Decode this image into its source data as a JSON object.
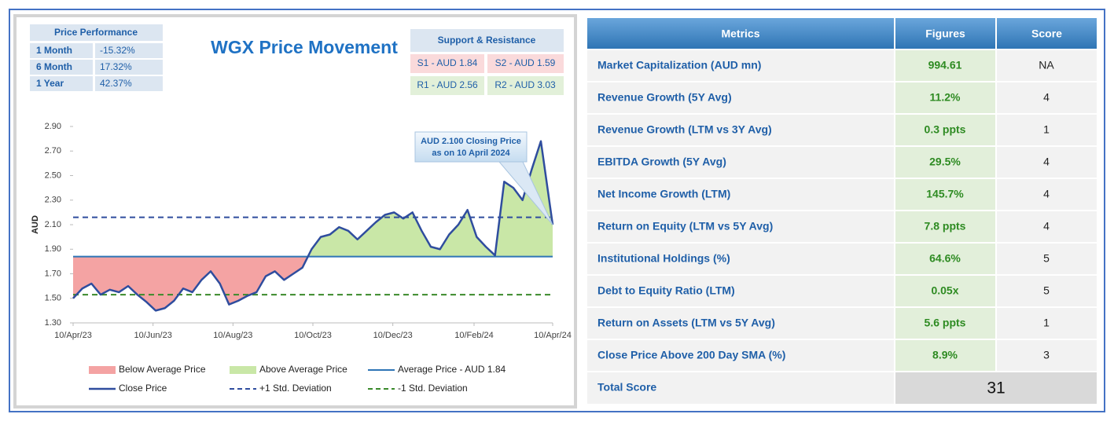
{
  "price_performance": {
    "title": "Price Performance",
    "rows": [
      [
        "1 Month",
        "-15.32%"
      ],
      [
        "6 Month",
        "17.32%"
      ],
      [
        "1 Year",
        "42.37%"
      ]
    ]
  },
  "support_resistance": {
    "title": "Support & Resistance",
    "levels": [
      "S1 - AUD 1.84",
      "S2 - AUD 1.59",
      "R1 - AUD 2.56",
      "R2 - AUD 3.03"
    ]
  },
  "chart_data": {
    "type": "line",
    "title": "WGX Price Movement",
    "y_label": "AUD",
    "x": [
      "10/Apr/23",
      "17/Apr/23",
      "24/Apr/23",
      "01/May/23",
      "08/May/23",
      "15/May/23",
      "22/May/23",
      "29/May/23",
      "05/Jun/23",
      "12/Jun/23",
      "19/Jun/23",
      "26/Jun/23",
      "03/Jul/23",
      "10/Jul/23",
      "17/Jul/23",
      "24/Jul/23",
      "31/Jul/23",
      "07/Aug/23",
      "14/Aug/23",
      "21/Aug/23",
      "28/Aug/23",
      "04/Sep/23",
      "11/Sep/23",
      "18/Sep/23",
      "25/Sep/23",
      "02/Oct/23",
      "09/Oct/23",
      "16/Oct/23",
      "23/Oct/23",
      "30/Oct/23",
      "06/Nov/23",
      "13/Nov/23",
      "20/Nov/23",
      "27/Nov/23",
      "04/Dec/23",
      "11/Dec/23",
      "18/Dec/23",
      "25/Dec/23",
      "01/Jan/24",
      "08/Jan/24",
      "15/Jan/24",
      "22/Jan/24",
      "29/Jan/24",
      "05/Feb/24",
      "12/Feb/24",
      "19/Feb/24",
      "26/Feb/24",
      "04/Mar/24",
      "11/Mar/24",
      "18/Mar/24",
      "25/Mar/24",
      "01/Apr/24",
      "08/Apr/24",
      "10/Apr/24"
    ],
    "series": [
      {
        "name": "Close Price",
        "color": "#2f4d9e",
        "values": [
          1.5,
          1.58,
          1.62,
          1.53,
          1.57,
          1.55,
          1.6,
          1.53,
          1.47,
          1.4,
          1.42,
          1.48,
          1.58,
          1.55,
          1.65,
          1.72,
          1.62,
          1.45,
          1.48,
          1.52,
          1.55,
          1.68,
          1.72,
          1.65,
          1.7,
          1.75,
          1.9,
          2.0,
          2.02,
          2.08,
          2.05,
          1.98,
          2.05,
          2.12,
          2.18,
          2.2,
          2.15,
          2.2,
          2.05,
          1.92,
          1.9,
          2.02,
          2.1,
          2.22,
          2.0,
          1.92,
          1.85,
          2.45,
          2.4,
          2.3,
          2.55,
          2.78,
          2.25,
          2.1
        ]
      }
    ],
    "reference_lines": [
      {
        "name": "Average Price - AUD 1.84",
        "value": 1.84,
        "color": "#2e75b6",
        "dashed": false
      },
      {
        "name": "+1 Std. Deviation",
        "value": 2.16,
        "color": "#2f4d9e",
        "dashed": true
      },
      {
        "name": "-1 Std. Deviation",
        "value": 1.53,
        "color": "#3a8a2a",
        "dashed": true
      }
    ],
    "fills": [
      {
        "name": "Below Average Price",
        "color": "#f4a3a3"
      },
      {
        "name": "Above Average Price",
        "color": "#c9e7a7"
      }
    ],
    "annotation": [
      "AUD 2.100 Closing Price",
      "as on 10 April 2024"
    ],
    "xlim": [
      "10/Apr/23",
      "10/Apr/24"
    ],
    "xticks": [
      "10/Apr/23",
      "10/Jun/23",
      "10/Aug/23",
      "10/Oct/23",
      "10/Dec/23",
      "10/Feb/24",
      "10/Apr/24"
    ],
    "ylim": [
      1.3,
      2.9
    ],
    "yticks": [
      {
        "value": 1.3,
        "label": "1.30"
      },
      {
        "value": 1.5,
        "label": "1.50"
      },
      {
        "value": 1.7,
        "label": "1.70"
      },
      {
        "value": 1.9,
        "label": "1.90"
      },
      {
        "value": 2.1,
        "label": "2.10"
      },
      {
        "value": 2.3,
        "label": "2.30"
      },
      {
        "value": 2.5,
        "label": "2.50"
      },
      {
        "value": 2.7,
        "label": "2.70"
      },
      {
        "value": 2.9,
        "label": "2.90"
      }
    ]
  },
  "metrics_table": {
    "headers": [
      "Metrics",
      "Figures",
      "Score"
    ],
    "rows": [
      [
        "Market Capitalization (AUD mn)",
        "994.61",
        "NA"
      ],
      [
        "Revenue Growth (5Y Avg)",
        "11.2%",
        "4"
      ],
      [
        "Revenue Growth (LTM vs 3Y Avg)",
        "0.3 ppts",
        "1"
      ],
      [
        "EBITDA Growth (5Y Avg)",
        "29.5%",
        "4"
      ],
      [
        "Net Income Growth (LTM)",
        "145.7%",
        "4"
      ],
      [
        "Return on Equity (LTM vs 5Y Avg)",
        "7.8 ppts",
        "4"
      ],
      [
        "Institutional Holdings (%)",
        "64.6%",
        "5"
      ],
      [
        "Debt to Equity Ratio (LTM)",
        "0.05x",
        "5"
      ],
      [
        "Return on Assets (LTM vs 5Y Avg)",
        "5.6 ppts",
        "1"
      ],
      [
        "Close Price Above 200 Day SMA (%)",
        "8.9%",
        "3"
      ]
    ],
    "total": {
      "label": "Total Score",
      "value": "31"
    }
  }
}
